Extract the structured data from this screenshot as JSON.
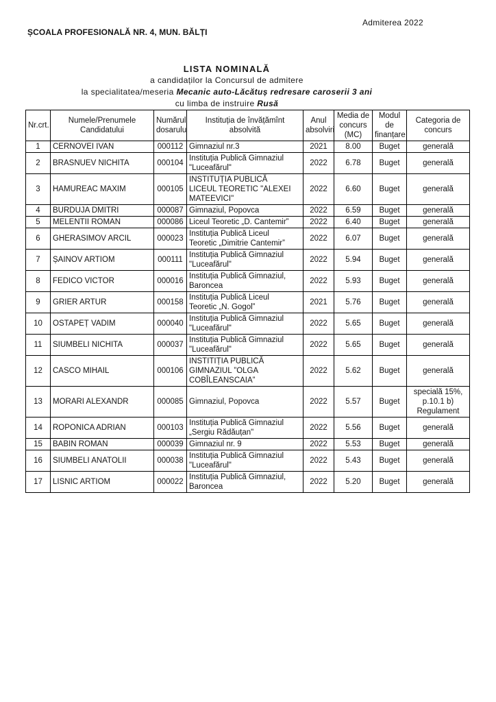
{
  "colors": {
    "text": "#151515",
    "table_border": "#000000",
    "page_background": "#ffffff"
  },
  "header": {
    "admission_year": "Admiterea 2022",
    "school_name": "ȘCOALA PROFESIONALĂ NR. 4, MUN. BĂLȚI"
  },
  "title_block": {
    "title": "LISTA NOMINALĂ",
    "subtitle_candidates": "a candidaților la Concursul de admitere",
    "specialty_prefix": "la specialitatea/meseria ",
    "specialty_name": "Mecanic auto-Lăcătuș redresare caroserii 3 ani",
    "language_prefix": "cu limba de instruire ",
    "language_name": "Rusă"
  },
  "table": {
    "columns": [
      "Nr.crt.",
      "Numele/Prenumele\nCandidatului",
      "Numărul\ndosarului",
      "Instituția de învățămînt\nabsolvită",
      "Anul\nabsolvirii",
      "Media de\nconcurs\n(MC)",
      "Modul de\nfinanțare",
      "Categoria de\nconcurs"
    ],
    "rows": [
      {
        "nr": "1",
        "name": "CERNOVEI IVAN",
        "file": "000112",
        "institution": "Gimnaziul nr.3",
        "year": "2021",
        "score": "8.00",
        "funding": "Buget",
        "category": "generală"
      },
      {
        "nr": "2",
        "name": "BRASNUEV NICHITA",
        "file": "000104",
        "institution": "Instituția Publică Gimnaziul\n\"Luceafărul\"",
        "year": "2022",
        "score": "6.78",
        "funding": "Buget",
        "category": "generală"
      },
      {
        "nr": "3",
        "name": "HAMUREAC MAXIM",
        "file": "000105",
        "institution": "INSTITUȚIA PUBLICĂ\nLICEUL TEORETIC \"ALEXEI\nMATEEVICI\"",
        "year": "2022",
        "score": "6.60",
        "funding": "Buget",
        "category": "generală"
      },
      {
        "nr": "4",
        "name": "BURDUJA DMITRI",
        "file": "000087",
        "institution": "Gimnaziul, Popovca",
        "year": "2022",
        "score": "6.59",
        "funding": "Buget",
        "category": "generală"
      },
      {
        "nr": "5",
        "name": "MELENTII ROMAN",
        "file": "000086",
        "institution": "Liceul Teoretic „D. Cantemir”",
        "year": "2022",
        "score": "6.40",
        "funding": "Buget",
        "category": "generală"
      },
      {
        "nr": "6",
        "name": "GHERASIMOV ARCIL",
        "file": "000023",
        "institution": "Instituția Publică Liceul\nTeoretic „Dimitrie Cantemir”",
        "year": "2022",
        "score": "6.07",
        "funding": "Buget",
        "category": "generală"
      },
      {
        "nr": "7",
        "name": "ȘAINOV ARTIOM",
        "file": "000111",
        "institution": "Instituția Publică Gimnaziul\n\"Luceafărul\"",
        "year": "2022",
        "score": "5.94",
        "funding": "Buget",
        "category": "generală"
      },
      {
        "nr": "8",
        "name": "FEDICO VICTOR",
        "file": "000016",
        "institution": "Instituția Publică Gimnaziul,\nBaroncea",
        "year": "2022",
        "score": "5.93",
        "funding": "Buget",
        "category": "generală"
      },
      {
        "nr": "9",
        "name": "GRIER ARTUR",
        "file": "000158",
        "institution": "Instituția Publică Liceul\nTeoretic „N. Gogol”",
        "year": "2021",
        "score": "5.76",
        "funding": "Buget",
        "category": "generală"
      },
      {
        "nr": "10",
        "name": "OSTAPEȚ VADIM",
        "file": "000040",
        "institution": "Instituția Publică Gimnaziul\n\"Luceafărul\"",
        "year": "2022",
        "score": "5.65",
        "funding": "Buget",
        "category": "generală"
      },
      {
        "nr": "11",
        "name": "SIUMBELI NICHITA",
        "file": "000037",
        "institution": "Instituția Publică Gimnaziul\n\"Luceafărul\"",
        "year": "2022",
        "score": "5.65",
        "funding": "Buget",
        "category": "generală"
      },
      {
        "nr": "12",
        "name": "CASCO MIHAIL",
        "file": "000106",
        "institution": "INSTITIȚIA PUBLICĂ\nGIMNAZIUL ”OLGA\nCOBÎLEANSCAIA”",
        "year": "2022",
        "score": "5.62",
        "funding": "Buget",
        "category": "generală"
      },
      {
        "nr": "13",
        "name": "MORARI ALEXANDR",
        "file": "000085",
        "institution": "Gimnaziul, Popovca",
        "year": "2022",
        "score": "5.57",
        "funding": "Buget",
        "category": "specială 15%,\np.10.1 b)\nRegulament"
      },
      {
        "nr": "14",
        "name": "ROPONICA ADRIAN",
        "file": "000103",
        "institution": "Instituția Publică Gimnaziul\n„Sergiu Rădăuțan\"",
        "year": "2022",
        "score": "5.56",
        "funding": "Buget",
        "category": "generală"
      },
      {
        "nr": "15",
        "name": "BABIN ROMAN",
        "file": "000039",
        "institution": "Gimnaziul nr. 9",
        "year": "2022",
        "score": "5.53",
        "funding": "Buget",
        "category": "generală"
      },
      {
        "nr": "16",
        "name": "SIUMBELI ANATOLII",
        "file": "000038",
        "institution": "Instituția Publică Gimnaziul\n\"Luceafărul\"",
        "year": "2022",
        "score": "5.43",
        "funding": "Buget",
        "category": "generală"
      },
      {
        "nr": "17",
        "name": "LISNIC ARTIOM",
        "file": "000022",
        "institution": "Instituția Publică Gimnaziul,\nBaroncea",
        "year": "2022",
        "score": "5.20",
        "funding": "Buget",
        "category": "generală"
      }
    ]
  }
}
